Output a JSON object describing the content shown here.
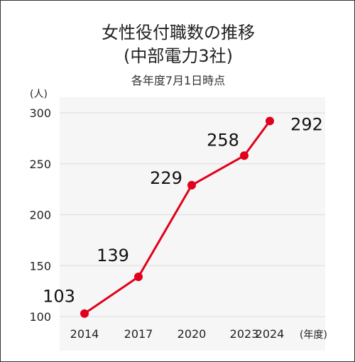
{
  "chart_data": {
    "type": "line",
    "title": "女性役付職数の推移",
    "subtitle": "(中部電力3社)",
    "note": "各年度7月1日時点",
    "ylabel": "(人)",
    "xlabel": "(年度)",
    "categories": [
      "2014",
      "2017",
      "2020",
      "2023",
      "2024"
    ],
    "x": [
      2014,
      2017,
      2020,
      2023,
      2024
    ],
    "values": [
      103,
      139,
      229,
      258,
      292
    ],
    "data_labels": [
      "103",
      "139",
      "229",
      "258",
      "292"
    ],
    "y_ticks": [
      100,
      150,
      200,
      250,
      300
    ],
    "ylim": [
      100,
      300
    ],
    "grid": true,
    "legend": "none",
    "colors": {
      "line": "#e0001b",
      "plot_background": "#f6f6f6",
      "gridline": "#dcdcdc"
    }
  }
}
